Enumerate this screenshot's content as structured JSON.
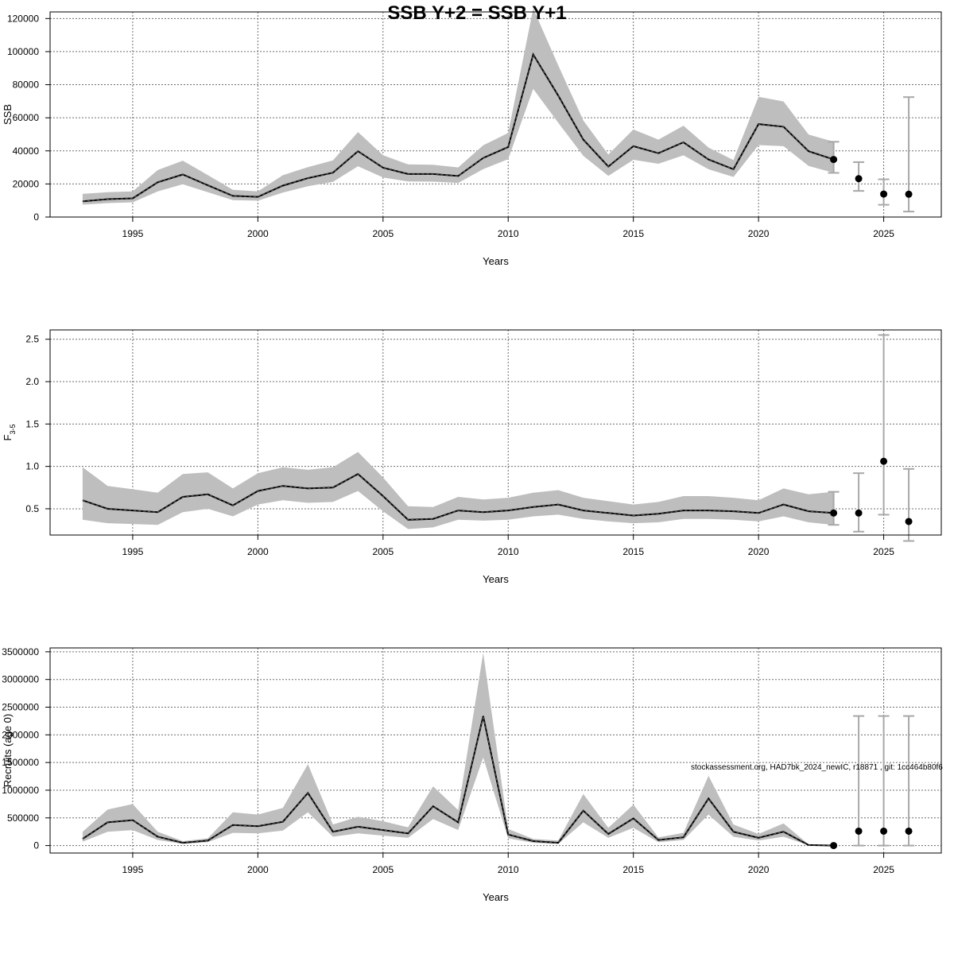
{
  "title": "SSB Y+2 = SSB Y+1",
  "footnote": "stockassessment.org, HAD7bk_2024_newIC, r18871 , git: 1cc464b80f6",
  "colors": {
    "band": "#bebebe",
    "line": "#000000",
    "grid": "#6e6e6e",
    "errorbar": "#a8a8a8",
    "point": "#000000"
  },
  "chart_data": [
    {
      "type": "line",
      "id": "ssb",
      "xlabel": "Years",
      "ylabel": "SSB",
      "ylabel_sub": "",
      "xlim": [
        1991.7,
        2027.3
      ],
      "ylim": [
        0,
        124000
      ],
      "x_ticks": [
        "1995",
        "2000",
        "2005",
        "2010",
        "2015",
        "2020",
        "2025"
      ],
      "y_ticks": [
        "0",
        "20000",
        "40000",
        "60000",
        "80000",
        "100000",
        "120000"
      ],
      "grid": true,
      "years": [
        1993,
        1994,
        1995,
        1996,
        1997,
        1998,
        1999,
        2000,
        2001,
        2002,
        2003,
        2004,
        2005,
        2006,
        2007,
        2008,
        2009,
        2010,
        2011,
        2012,
        2013,
        2014,
        2015,
        2016,
        2017,
        2018,
        2019,
        2020,
        2021,
        2022,
        2023
      ],
      "estimate": [
        9500,
        10800,
        11300,
        21000,
        25700,
        19200,
        12800,
        12200,
        19000,
        23500,
        26800,
        39800,
        29800,
        26000,
        26000,
        24800,
        35700,
        42300,
        98300,
        73400,
        46800,
        30500,
        42800,
        38600,
        45200,
        34800,
        28900,
        56200,
        54600,
        39800,
        34800
      ],
      "lower": [
        7500,
        8400,
        8900,
        15500,
        19800,
        15000,
        10200,
        9900,
        14800,
        18600,
        21300,
        30700,
        23900,
        21500,
        21400,
        20600,
        29000,
        35000,
        77500,
        57000,
        37000,
        24900,
        34600,
        32200,
        37300,
        28900,
        24200,
        43500,
        42800,
        30900,
        26700
      ],
      "upper": [
        14000,
        15000,
        15500,
        28400,
        34100,
        25400,
        16500,
        15500,
        25300,
        30200,
        34200,
        51400,
        37400,
        31800,
        31600,
        30000,
        43400,
        50800,
        126000,
        91700,
        58400,
        37800,
        52900,
        46800,
        55200,
        42000,
        34400,
        72700,
        69900,
        49900,
        45500
      ],
      "forecast": [
        {
          "year": 2023,
          "value": 34800,
          "low": 26700,
          "high": 45500
        },
        {
          "year": 2024,
          "value": 23200,
          "low": 15800,
          "high": 33200
        },
        {
          "year": 2025,
          "value": 13900,
          "low": 7400,
          "high": 22800
        },
        {
          "year": 2026,
          "value": 13800,
          "low": 3300,
          "high": 72500
        }
      ]
    },
    {
      "type": "line",
      "id": "fbar",
      "xlabel": "Years",
      "ylabel": "F",
      "ylabel_sub": "3-5",
      "xlim": [
        1991.7,
        2027.3
      ],
      "ylim": [
        0.19,
        2.61
      ],
      "x_ticks": [
        "1995",
        "2000",
        "2005",
        "2010",
        "2015",
        "2020",
        "2025"
      ],
      "y_ticks": [
        "0.5",
        "1.0",
        "1.5",
        "2.0",
        "2.5"
      ],
      "grid": true,
      "years": [
        1993,
        1994,
        1995,
        1996,
        1997,
        1998,
        1999,
        2000,
        2001,
        2002,
        2003,
        2004,
        2005,
        2006,
        2007,
        2008,
        2009,
        2010,
        2011,
        2012,
        2013,
        2014,
        2015,
        2016,
        2017,
        2018,
        2019,
        2020,
        2021,
        2022,
        2023
      ],
      "estimate": [
        0.6,
        0.5,
        0.48,
        0.46,
        0.64,
        0.67,
        0.54,
        0.71,
        0.77,
        0.74,
        0.75,
        0.91,
        0.65,
        0.37,
        0.38,
        0.48,
        0.46,
        0.48,
        0.52,
        0.55,
        0.48,
        0.45,
        0.42,
        0.44,
        0.48,
        0.48,
        0.47,
        0.45,
        0.55,
        0.47,
        0.45
      ],
      "lower": [
        0.37,
        0.33,
        0.32,
        0.31,
        0.46,
        0.5,
        0.41,
        0.55,
        0.6,
        0.57,
        0.58,
        0.71,
        0.47,
        0.26,
        0.28,
        0.37,
        0.36,
        0.37,
        0.41,
        0.43,
        0.38,
        0.35,
        0.33,
        0.34,
        0.38,
        0.38,
        0.37,
        0.35,
        0.41,
        0.34,
        0.31
      ],
      "upper": [
        0.99,
        0.77,
        0.73,
        0.69,
        0.91,
        0.93,
        0.74,
        0.92,
        0.99,
        0.96,
        0.99,
        1.17,
        0.87,
        0.53,
        0.52,
        0.64,
        0.61,
        0.63,
        0.69,
        0.72,
        0.63,
        0.59,
        0.55,
        0.58,
        0.65,
        0.65,
        0.63,
        0.6,
        0.74,
        0.67,
        0.7
      ],
      "forecast": [
        {
          "year": 2023,
          "value": 0.45,
          "low": 0.31,
          "high": 0.7
        },
        {
          "year": 2024,
          "value": 0.45,
          "low": 0.23,
          "high": 0.92
        },
        {
          "year": 2025,
          "value": 1.06,
          "low": 0.43,
          "high": 2.55
        },
        {
          "year": 2026,
          "value": 0.35,
          "low": 0.12,
          "high": 0.97
        }
      ]
    },
    {
      "type": "line",
      "id": "recruits",
      "xlabel": "Years",
      "ylabel": "Recruits (age 0)",
      "ylabel_sub": "",
      "xlim": [
        1991.7,
        2027.3
      ],
      "ylim": [
        -135000,
        3570000
      ],
      "x_ticks": [
        "1995",
        "2000",
        "2005",
        "2010",
        "2015",
        "2020",
        "2025"
      ],
      "y_ticks": [
        "0",
        "500000",
        "1000000",
        "1500000",
        "2000000",
        "2500000",
        "3000000",
        "3500000"
      ],
      "grid": true,
      "years": [
        1993,
        1994,
        1995,
        1996,
        1997,
        1998,
        1999,
        2000,
        2001,
        2002,
        2003,
        2004,
        2005,
        2006,
        2007,
        2008,
        2009,
        2010,
        2011,
        2012,
        2013,
        2014,
        2015,
        2016,
        2017,
        2018,
        2019,
        2020,
        2021,
        2022,
        2023
      ],
      "estimate": [
        120000,
        420000,
        460000,
        160000,
        50000,
        90000,
        370000,
        350000,
        430000,
        950000,
        250000,
        340000,
        280000,
        220000,
        710000,
        420000,
        2340000,
        200000,
        80000,
        50000,
        630000,
        210000,
        490000,
        100000,
        150000,
        850000,
        250000,
        140000,
        250000,
        10000,
        0
      ],
      "lower": [
        70000,
        250000,
        280000,
        100000,
        30000,
        60000,
        230000,
        220000,
        270000,
        600000,
        160000,
        220000,
        180000,
        140000,
        480000,
        280000,
        1590000,
        130000,
        50000,
        30000,
        420000,
        140000,
        320000,
        60000,
        100000,
        560000,
        160000,
        90000,
        160000,
        5000,
        0
      ],
      "upper": [
        250000,
        650000,
        750000,
        250000,
        80000,
        130000,
        600000,
        560000,
        680000,
        1470000,
        380000,
        520000,
        440000,
        330000,
        1070000,
        640000,
        3480000,
        300000,
        120000,
        90000,
        930000,
        320000,
        740000,
        150000,
        230000,
        1260000,
        380000,
        210000,
        400000,
        20000,
        5000
      ],
      "forecast": [
        {
          "year": 2023,
          "value": 0,
          "low": 0,
          "high": 0
        },
        {
          "year": 2024,
          "value": 260000,
          "low": 0,
          "high": 2340000
        },
        {
          "year": 2025,
          "value": 260000,
          "low": 0,
          "high": 2340000
        },
        {
          "year": 2026,
          "value": 260000,
          "low": 0,
          "high": 2340000
        }
      ]
    }
  ]
}
